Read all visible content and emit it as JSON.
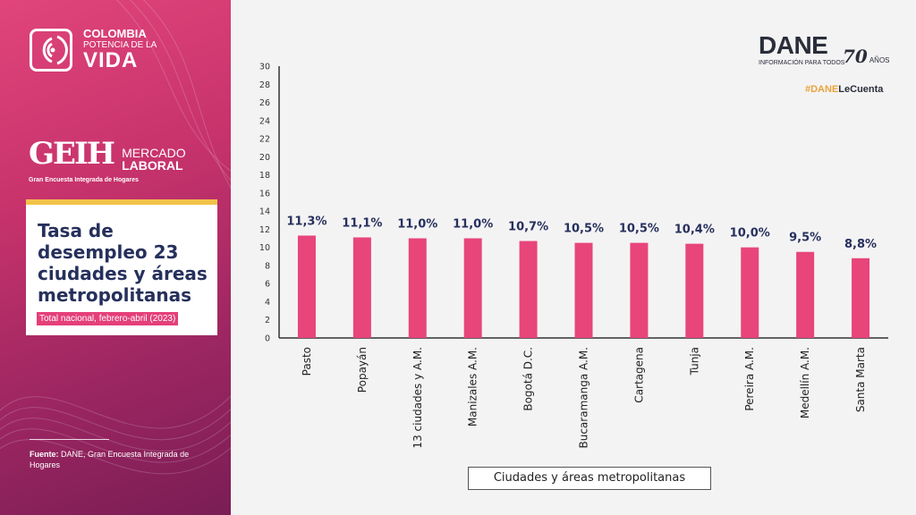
{
  "branding": {
    "gov_logo": {
      "line1": "COLOMBIA",
      "line2": "POTENCIA DE LA",
      "line3": "VIDA"
    },
    "geih": {
      "abbr": "GEIH",
      "mercado": "MERCADO",
      "laboral": "LABORAL",
      "subtitle": "Gran Encuesta Integrada de Hogares"
    },
    "dane": {
      "name": "DANE",
      "tagline": "INFORMACIÓN PARA TODOS",
      "years": "70",
      "years_word": "AÑOS"
    },
    "hashtag_prefix": "#DANE",
    "hashtag_suffix": "LeCuenta"
  },
  "card": {
    "title": "Tasa de desempleo 23 ciudades y áreas metropolitanas",
    "subtitle": "Total nacional, febrero-abril (2023)"
  },
  "source": {
    "label": "Fuente:",
    "text": "DANE, Gran Encuesta Integrada de Hogares"
  },
  "colors": {
    "bar": "#e8457a",
    "accent": "#f2c24a",
    "title": "#26305c"
  },
  "chart_data": {
    "type": "bar",
    "categories": [
      "Pasto",
      "Popayán",
      "13 ciudades y A.M.",
      "Manizales A.M.",
      "Bogotá D.C.",
      "Bucaramanga A.M.",
      "Cartagena",
      "Tunja",
      "Pereira A.M.",
      "Medellín A.M.",
      "Santa Marta"
    ],
    "values": [
      11.3,
      11.1,
      11.0,
      11.0,
      10.7,
      10.5,
      10.5,
      10.4,
      10.0,
      9.5,
      8.8
    ],
    "data_labels": [
      "11,3%",
      "11,1%",
      "11,0%",
      "11,0%",
      "10,7%",
      "10,5%",
      "10,5%",
      "10,4%",
      "10,0%",
      "9,5%",
      "8,8%"
    ],
    "yticks": [
      0,
      2,
      4,
      6,
      8,
      10,
      12,
      14,
      16,
      18,
      20,
      22,
      24,
      26,
      28,
      30
    ],
    "ylim": [
      0,
      30
    ],
    "xlabel": "Ciudades y áreas metropolitanas",
    "ylabel": "",
    "grid": false
  }
}
